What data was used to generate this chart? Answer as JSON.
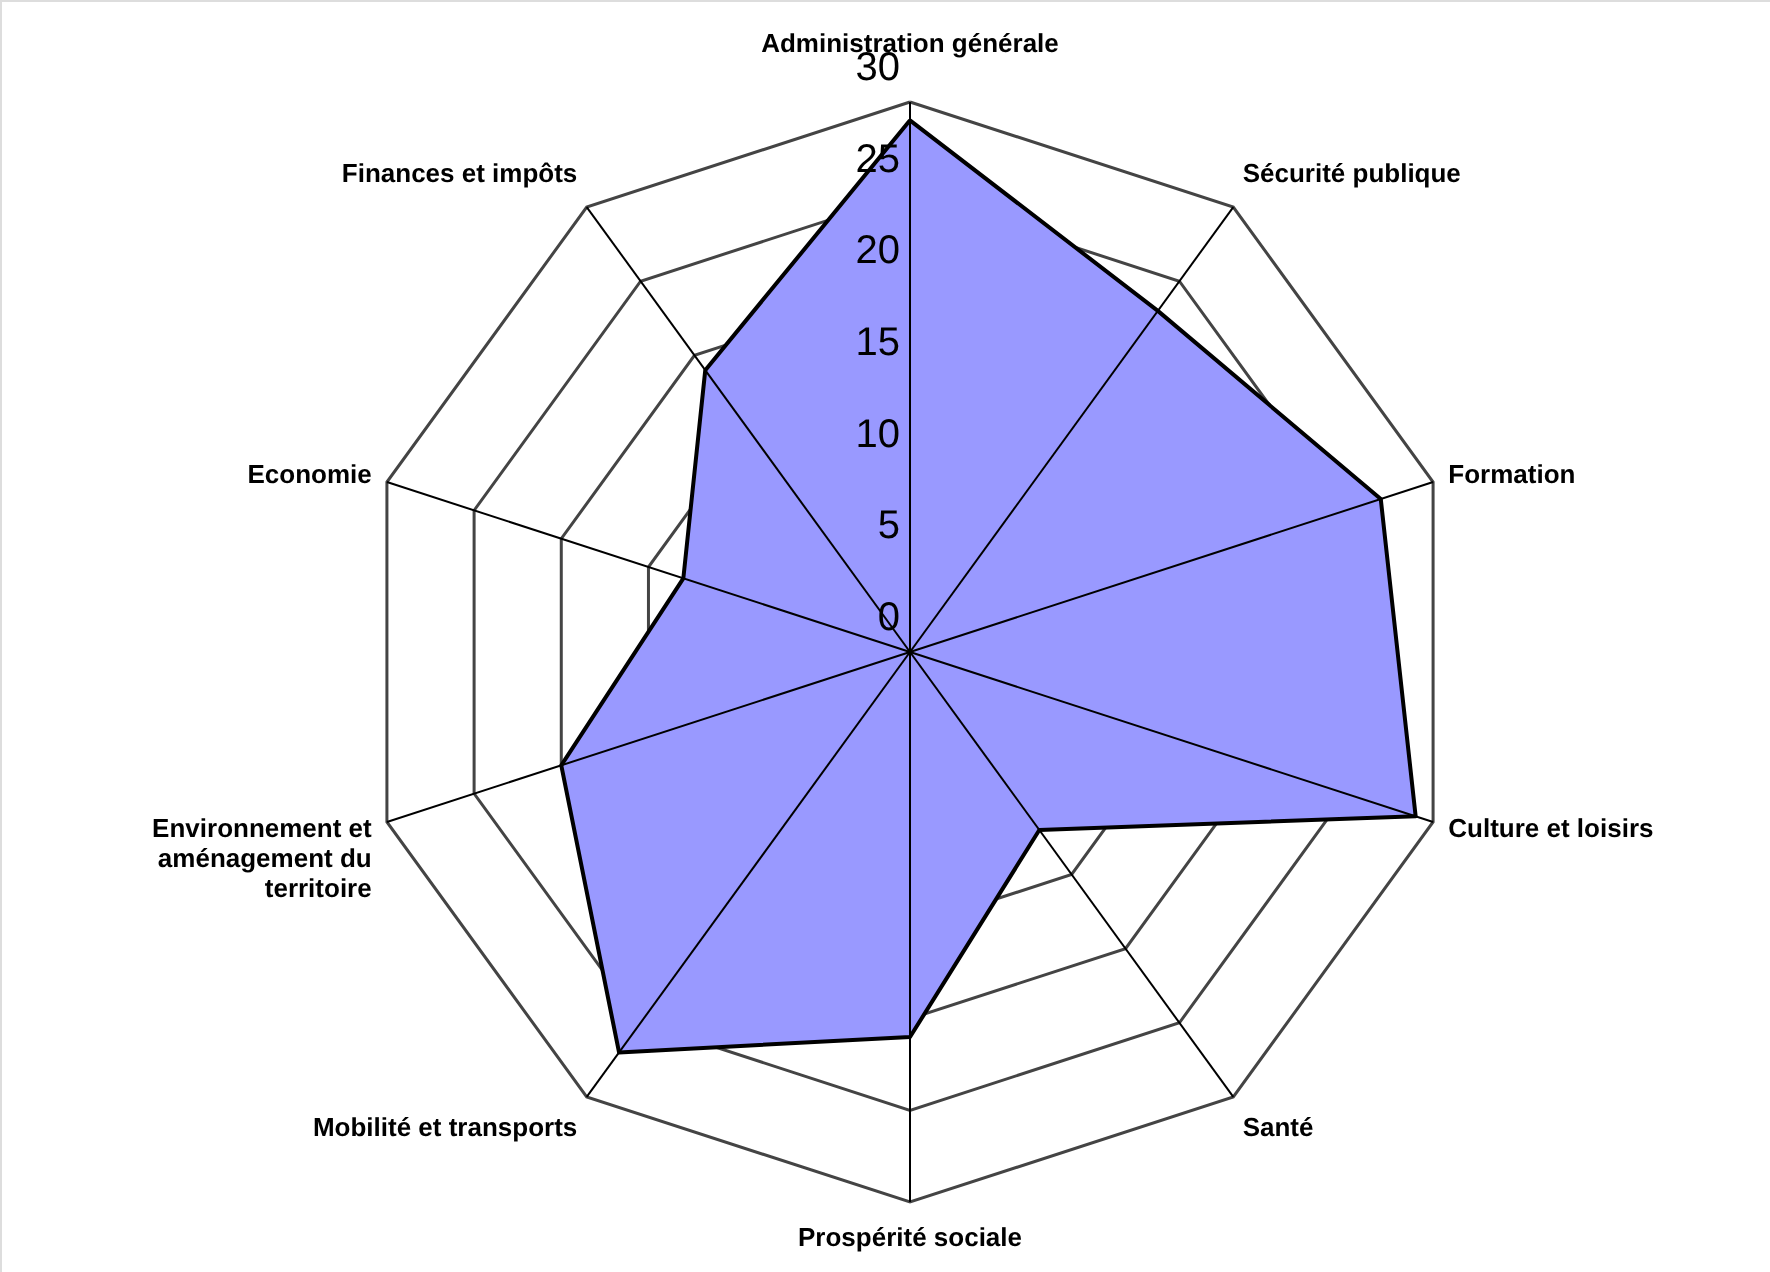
{
  "chart_data": {
    "type": "radar",
    "categories": [
      "Administration générale",
      "Sécurité publique",
      "Formation",
      "Culture et loisirs",
      "Santé",
      "Prospérité sociale",
      "Mobilité et transports",
      "Environnement et\naménagement du\nterritoire",
      "Economie",
      "Finances et impôts"
    ],
    "series": [
      {
        "color": "#9999ff",
        "values": [
          29,
          23,
          27,
          29,
          12,
          21,
          27,
          20,
          13,
          19
        ]
      }
    ],
    "ylim": [
      0,
      30
    ],
    "yticks": [
      0,
      5,
      10,
      15,
      20,
      25,
      30
    ],
    "grid": true
  }
}
